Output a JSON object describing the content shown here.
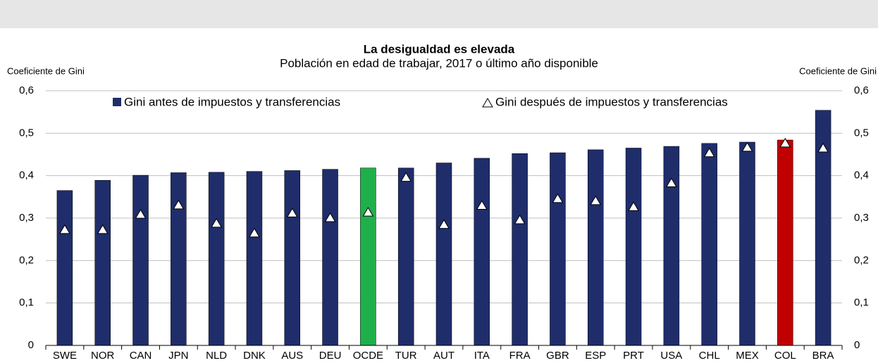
{
  "chart_data": {
    "type": "bar",
    "title": "La desigualdad es elevada",
    "subtitle": "Población en edad de trabajar, 2017 o último año disponible",
    "y_label": "Coeficiente de Gini",
    "y2_label": "Coeficiente de Gini",
    "categories": [
      "SWE",
      "NOR",
      "CAN",
      "JPN",
      "NLD",
      "DNK",
      "AUS",
      "DEU",
      "OCDE",
      "TUR",
      "AUT",
      "ITA",
      "FRA",
      "GBR",
      "ESP",
      "PRT",
      "USA",
      "CHL",
      "MEX",
      "COL",
      "BRA"
    ],
    "series": [
      {
        "name": "Gini antes de impuestos y transferencias",
        "kind": "bar",
        "color": "#1f2d6b",
        "colors": [
          "#1f2d6b",
          "#1f2d6b",
          "#1f2d6b",
          "#1f2d6b",
          "#1f2d6b",
          "#1f2d6b",
          "#1f2d6b",
          "#1f2d6b",
          "#1fb04b",
          "#1f2d6b",
          "#1f2d6b",
          "#1f2d6b",
          "#1f2d6b",
          "#1f2d6b",
          "#1f2d6b",
          "#1f2d6b",
          "#1f2d6b",
          "#1f2d6b",
          "#1f2d6b",
          "#c00000",
          "#1f2d6b"
        ],
        "values": [
          0.365,
          0.389,
          0.401,
          0.407,
          0.408,
          0.41,
          0.412,
          0.415,
          0.418,
          0.418,
          0.43,
          0.441,
          0.452,
          0.454,
          0.461,
          0.465,
          0.469,
          0.476,
          0.479,
          0.484,
          0.554
        ]
      },
      {
        "name": "Gini después de impuestos y transferencias",
        "kind": "marker",
        "color": "#ffffff",
        "values": [
          0.272,
          0.272,
          0.308,
          0.33,
          0.287,
          0.264,
          0.311,
          0.3,
          0.313,
          0.395,
          0.284,
          0.329,
          0.295,
          0.345,
          0.34,
          0.326,
          0.382,
          0.453,
          0.466,
          0.476,
          0.464
        ]
      }
    ],
    "ylim": [
      0,
      0.6
    ],
    "yticks": [
      0,
      {
        "value": 0.1,
        "label": "0,1"
      },
      {
        "value": 0.2,
        "label": "0,2"
      },
      {
        "value": 0.3,
        "label": "0,3"
      },
      {
        "value": 0.4,
        "label": "0,4"
      },
      {
        "value": 0.5,
        "label": "0,5"
      },
      {
        "value": 0.6,
        "label": "0,6"
      }
    ],
    "y2lim": [
      0,
      0.6
    ],
    "y2ticks": [
      0,
      {
        "value": 0.1,
        "label": "0,1"
      },
      {
        "value": 0.2,
        "label": "0,2"
      },
      {
        "value": 0.3,
        "label": "0,3"
      },
      {
        "value": 0.4,
        "label": "0,4"
      },
      {
        "value": 0.5,
        "label": "0,5"
      },
      {
        "value": 0.6,
        "label": "0,6"
      }
    ],
    "grid": true,
    "legend": "top"
  }
}
